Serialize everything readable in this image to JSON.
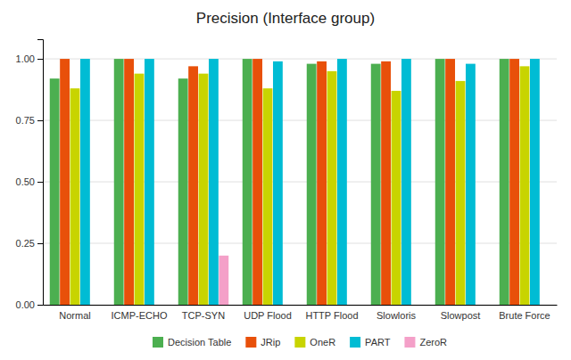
{
  "chart_data": {
    "type": "bar",
    "title": "Precision (Interface group)",
    "categories": [
      "Normal",
      "ICMP-ECHO",
      "TCP-SYN",
      "UDP Flood",
      "HTTP Flood",
      "Slowloris",
      "Slowpost",
      "Brute Force"
    ],
    "series": [
      {
        "name": "Decision Table",
        "color": "#4caf50",
        "values": [
          0.92,
          1.0,
          0.92,
          1.0,
          0.98,
          0.98,
          1.0,
          1.0
        ]
      },
      {
        "name": "JRip",
        "color": "#e8500a",
        "values": [
          1.0,
          1.0,
          0.97,
          1.0,
          0.99,
          0.99,
          1.0,
          1.0
        ]
      },
      {
        "name": "OneR",
        "color": "#c8d400",
        "values": [
          0.88,
          0.94,
          0.94,
          0.88,
          0.95,
          0.87,
          0.91,
          0.97
        ]
      },
      {
        "name": "PART",
        "color": "#00bcd4",
        "values": [
          1.0,
          1.0,
          1.0,
          0.99,
          1.0,
          1.0,
          0.98,
          1.0
        ]
      },
      {
        "name": "ZeroR",
        "color": "#f4a0c8",
        "values": [
          0.0,
          0.0,
          0.2,
          0.0,
          0.0,
          0.0,
          0.0,
          0.0
        ]
      }
    ],
    "ylim": [
      0,
      1.08
    ],
    "yticks": [
      {
        "value": 0,
        "label": "0.00"
      },
      0.25,
      {
        "value": 0.5,
        "label": "0.50"
      },
      0.75,
      {
        "value": 1,
        "label": "1.00"
      }
    ],
    "grid": true,
    "legend": "bottom"
  }
}
